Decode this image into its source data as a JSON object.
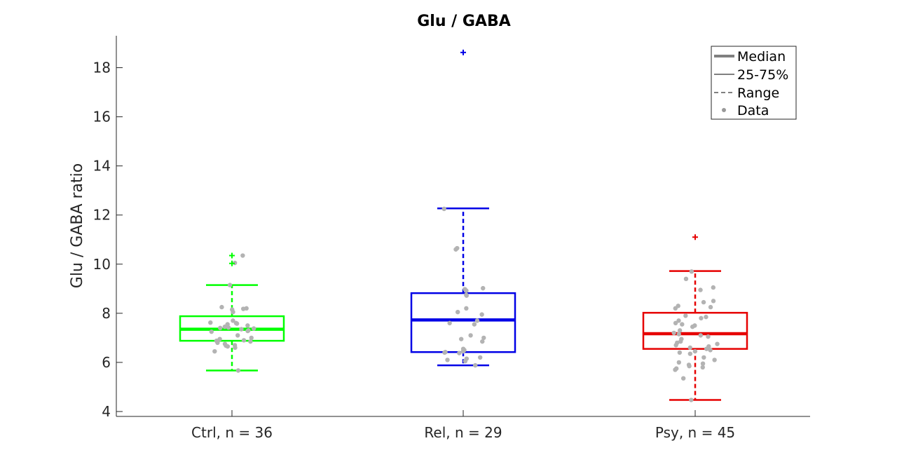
{
  "chart_data": {
    "type": "box",
    "title": "Glu / GABA",
    "ylabel": "Glu / GABA ratio",
    "xlabel": "",
    "ylim": [
      3.8,
      19.3
    ],
    "yticks": [
      4,
      6,
      8,
      10,
      12,
      14,
      16,
      18
    ],
    "grid": false,
    "legend_position": "top-right",
    "legend": [
      "Median",
      "25-75%",
      "Range",
      "Data"
    ],
    "point_color": "#b3b3b3",
    "groups": [
      {
        "label": "Ctrl, n = 36",
        "color": "#00ff00",
        "q1": 6.88,
        "median": 7.35,
        "q3": 7.88,
        "whisker_low": 5.67,
        "whisker_high": 9.15,
        "outliers": [
          10.35,
          10.03
        ],
        "points": [
          10.35,
          10.05,
          9.15,
          8.25,
          8.2,
          8.18,
          8.15,
          8.05,
          7.7,
          7.62,
          7.6,
          7.58,
          7.55,
          7.5,
          7.45,
          7.42,
          7.4,
          7.38,
          7.35,
          7.3,
          7.28,
          7.25,
          7.1,
          7.0,
          6.95,
          6.9,
          6.88,
          6.85,
          6.8,
          6.75,
          6.7,
          6.68,
          6.65,
          6.6,
          6.45,
          5.67
        ]
      },
      {
        "label": "Rel, n = 29",
        "color": "#0000e6",
        "q1": 6.42,
        "median": 7.73,
        "q3": 8.82,
        "whisker_low": 5.88,
        "whisker_high": 12.27,
        "outliers": [
          18.62
        ],
        "points": [
          12.25,
          10.65,
          10.6,
          9.02,
          8.98,
          8.92,
          8.75,
          8.72,
          8.2,
          8.05,
          7.95,
          7.7,
          7.6,
          7.55,
          7.1,
          7.0,
          6.95,
          6.85,
          6.55,
          6.5,
          6.45,
          6.42,
          6.4,
          6.38,
          6.2,
          6.15,
          6.1,
          6.05,
          5.88
        ]
      },
      {
        "label": "Psy, n = 45",
        "color": "#e60000",
        "q1": 6.55,
        "median": 7.17,
        "q3": 8.02,
        "whisker_low": 4.47,
        "whisker_high": 9.72,
        "outliers": [
          11.1
        ],
        "points": [
          9.7,
          9.4,
          9.05,
          8.95,
          8.5,
          8.45,
          8.3,
          8.25,
          8.2,
          7.9,
          7.85,
          7.8,
          7.7,
          7.6,
          7.55,
          7.5,
          7.45,
          7.3,
          7.2,
          7.15,
          7.1,
          7.05,
          6.95,
          6.85,
          6.8,
          6.75,
          6.7,
          6.65,
          6.6,
          6.55,
          6.5,
          6.45,
          6.4,
          6.35,
          6.2,
          6.1,
          6.0,
          5.95,
          5.9,
          5.85,
          5.8,
          5.75,
          5.7,
          5.35,
          4.47
        ]
      }
    ]
  }
}
